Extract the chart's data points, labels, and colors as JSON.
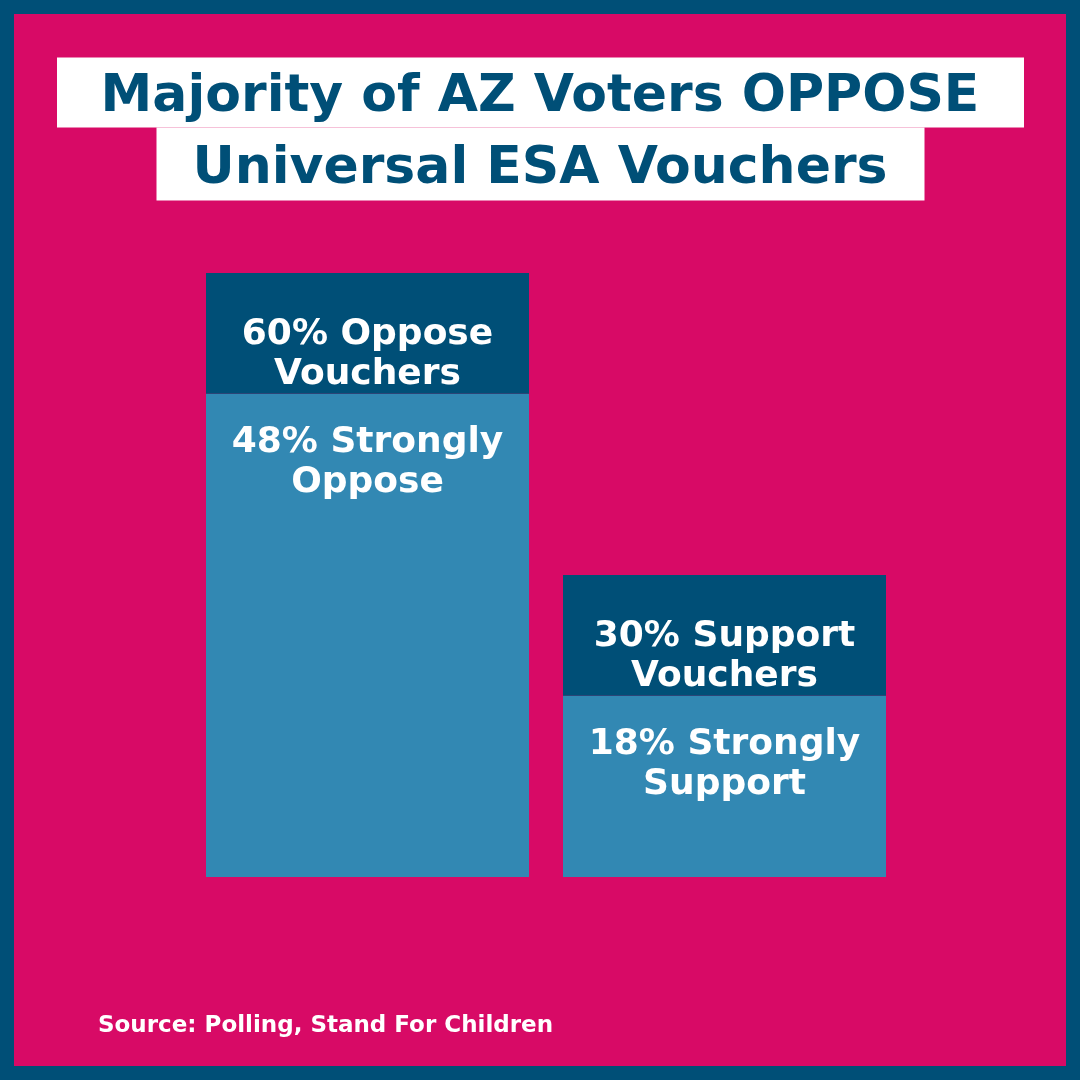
{
  "chart_data": {
    "type": "bar",
    "title": "Majority of AZ Voters OPPOSE Universal ESA Vouchers",
    "categories": [
      null,
      null
    ],
    "stacked": true,
    "tick_labels": false,
    "series": [
      {
        "color": "#3288b3",
        "values": [
          48,
          18
        ],
        "value_labels": [
          "48% Strongly Oppose",
          "18% Strongly Support"
        ]
      },
      {
        "color": "#004f77",
        "values": [
          12,
          12
        ]
      }
    ],
    "totals": [
      "60% Oppose Vouchers",
      "30% Support Vouchers"
    ],
    "annotations": [
      "Source: Polling, Stand For Children"
    ]
  }
}
